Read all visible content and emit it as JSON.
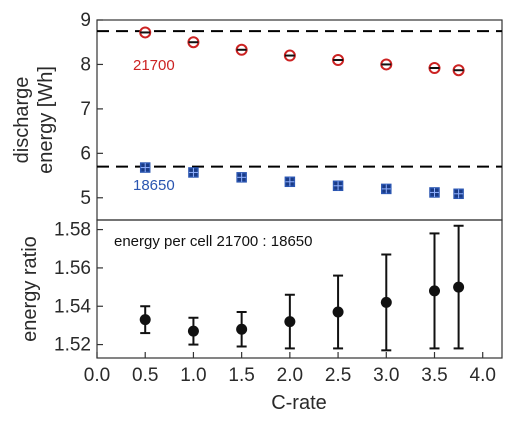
{
  "chart_data": {
    "type": "scatter",
    "xlabel": "C-rate",
    "x_ticks": [
      "0.0",
      "0.5",
      "1.0",
      "1.5",
      "2.0",
      "2.5",
      "3.0",
      "3.5",
      "4.0"
    ],
    "xlim": [
      0.0,
      4.2
    ],
    "colors": {
      "red": "#cc2222",
      "blue": "#2a55b0",
      "black": "#111111"
    },
    "panels": [
      {
        "ylabel_line1": "discharge",
        "ylabel_line2": "energy [Wh]",
        "ylim": [
          4.5,
          9.0
        ],
        "y_ticks": [
          "5",
          "6",
          "7",
          "8",
          "9"
        ],
        "reference_lines": [
          8.75,
          5.7
        ],
        "series": [
          {
            "name": "21700",
            "marker": "circle",
            "color": "#cc2222",
            "x": [
              0.5,
              1.0,
              1.5,
              2.0,
              2.5,
              3.0,
              3.5,
              3.75
            ],
            "y": [
              8.72,
              8.5,
              8.33,
              8.2,
              8.1,
              8.0,
              7.92,
              7.87
            ]
          },
          {
            "name": "18650",
            "marker": "square",
            "color": "#2a55b0",
            "x": [
              0.5,
              1.0,
              1.5,
              2.0,
              2.5,
              3.0,
              3.5,
              3.75
            ],
            "y": [
              5.68,
              5.57,
              5.46,
              5.36,
              5.27,
              5.2,
              5.12,
              5.09
            ]
          }
        ]
      },
      {
        "ylabel": "energy ratio",
        "ylim": [
          1.513,
          1.585
        ],
        "y_ticks": [
          "1.52",
          "1.54",
          "1.56",
          "1.58"
        ],
        "annotation": "energy per cell 21700 : 18650",
        "series": [
          {
            "marker": "circle",
            "color": "#111111",
            "x": [
              0.5,
              1.0,
              1.5,
              2.0,
              2.5,
              3.0,
              3.5,
              3.75
            ],
            "y": [
              1.533,
              1.527,
              1.528,
              1.532,
              1.537,
              1.542,
              1.548,
              1.55
            ],
            "err": [
              0.007,
              0.007,
              0.009,
              0.014,
              0.019,
              0.025,
              0.03,
              0.032
            ]
          }
        ]
      }
    ]
  }
}
